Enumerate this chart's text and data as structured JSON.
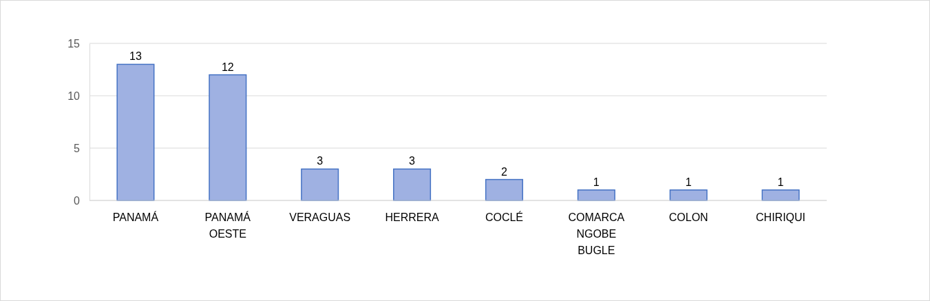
{
  "chart_data": {
    "type": "bar",
    "categories": [
      "PANAMÁ",
      "PANAMÁ OESTE",
      "VERAGUAS",
      "HERRERA",
      "COCLÉ",
      "COMARCA NGOBE BUGLE",
      "COLON",
      "CHIRIQUI"
    ],
    "values": [
      13,
      12,
      3,
      3,
      2,
      1,
      1,
      1
    ],
    "color": "#9fb1e2",
    "ylim": [
      0,
      15
    ],
    "yticks": [
      0,
      5,
      10,
      15
    ],
    "grid": "y",
    "data_labels": true
  }
}
